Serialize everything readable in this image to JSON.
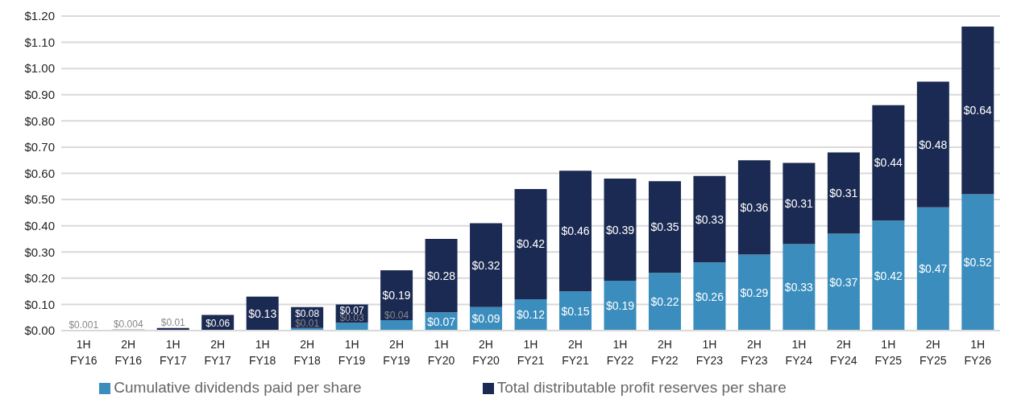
{
  "chart_data": {
    "type": "bar",
    "stacked": true,
    "categories": [
      "1H FY16",
      "2H FY16",
      "1H FY17",
      "2H FY17",
      "1H FY18",
      "2H FY18",
      "1H FY19",
      "2H FY19",
      "1H FY20",
      "2H FY20",
      "1H FY21",
      "2H FY21",
      "1H FY22",
      "2H FY22",
      "1H FY23",
      "2H FY23",
      "1H FY24",
      "2H FY24",
      "1H FY25",
      "2H FY25",
      "1H FY26"
    ],
    "series": [
      {
        "name": "Cumulative dividends paid per share",
        "color": "#3a8dbd",
        "values": [
          0,
          0,
          0,
          0,
          0,
          0.01,
          0.03,
          0.04,
          0.07,
          0.09,
          0.12,
          0.15,
          0.19,
          0.22,
          0.26,
          0.29,
          0.33,
          0.37,
          0.42,
          0.47,
          0.52
        ],
        "value_labels": [
          null,
          null,
          null,
          null,
          null,
          "$0.01",
          "$0.03",
          "$0.04",
          "$0.07",
          "$0.09",
          "$0.12",
          "$0.15",
          "$0.19",
          "$0.22",
          "$0.26",
          "$0.29",
          "$0.33",
          "$0.37",
          "$0.42",
          "$0.47",
          "$0.52"
        ]
      },
      {
        "name": "Total distributable profit reserves per share",
        "color": "#1b2a52",
        "values": [
          0.001,
          0.004,
          0.01,
          0.06,
          0.13,
          0.08,
          0.07,
          0.19,
          0.28,
          0.32,
          0.42,
          0.46,
          0.39,
          0.35,
          0.33,
          0.36,
          0.31,
          0.31,
          0.44,
          0.48,
          0.64
        ],
        "value_labels": [
          "$0.001",
          "$0.004",
          "$0.01",
          "$0.06",
          "$0.13",
          "$0.08",
          "$0.07",
          "$0.19",
          "$0.28",
          "$0.32",
          "$0.42",
          "$0.46",
          "$0.39",
          "$0.35",
          "$0.33",
          "$0.36",
          "$0.31",
          "$0.31",
          "$0.44",
          "$0.48",
          "$0.64"
        ]
      }
    ],
    "ylim": [
      0,
      1.2
    ],
    "yticks": [
      {
        "value": 0,
        "label": "$0.00"
      },
      {
        "value": 0.1,
        "label": "$0.10"
      },
      {
        "value": 0.2,
        "label": "$0.20"
      },
      {
        "value": 0.3,
        "label": "$0.30"
      },
      {
        "value": 0.4,
        "label": "$0.40"
      },
      {
        "value": 0.5,
        "label": "$0.50"
      },
      {
        "value": 0.6,
        "label": "$0.60"
      },
      {
        "value": 0.7,
        "label": "$0.70"
      },
      {
        "value": 0.8,
        "label": "$0.80"
      },
      {
        "value": 0.9,
        "label": "$0.90"
      },
      {
        "value": 1.0,
        "label": "$1.00"
      },
      {
        "value": 1.1,
        "label": "$1.10"
      },
      {
        "value": 1.2,
        "label": "$1.20"
      }
    ],
    "grid": "y",
    "legend": "bottom"
  }
}
